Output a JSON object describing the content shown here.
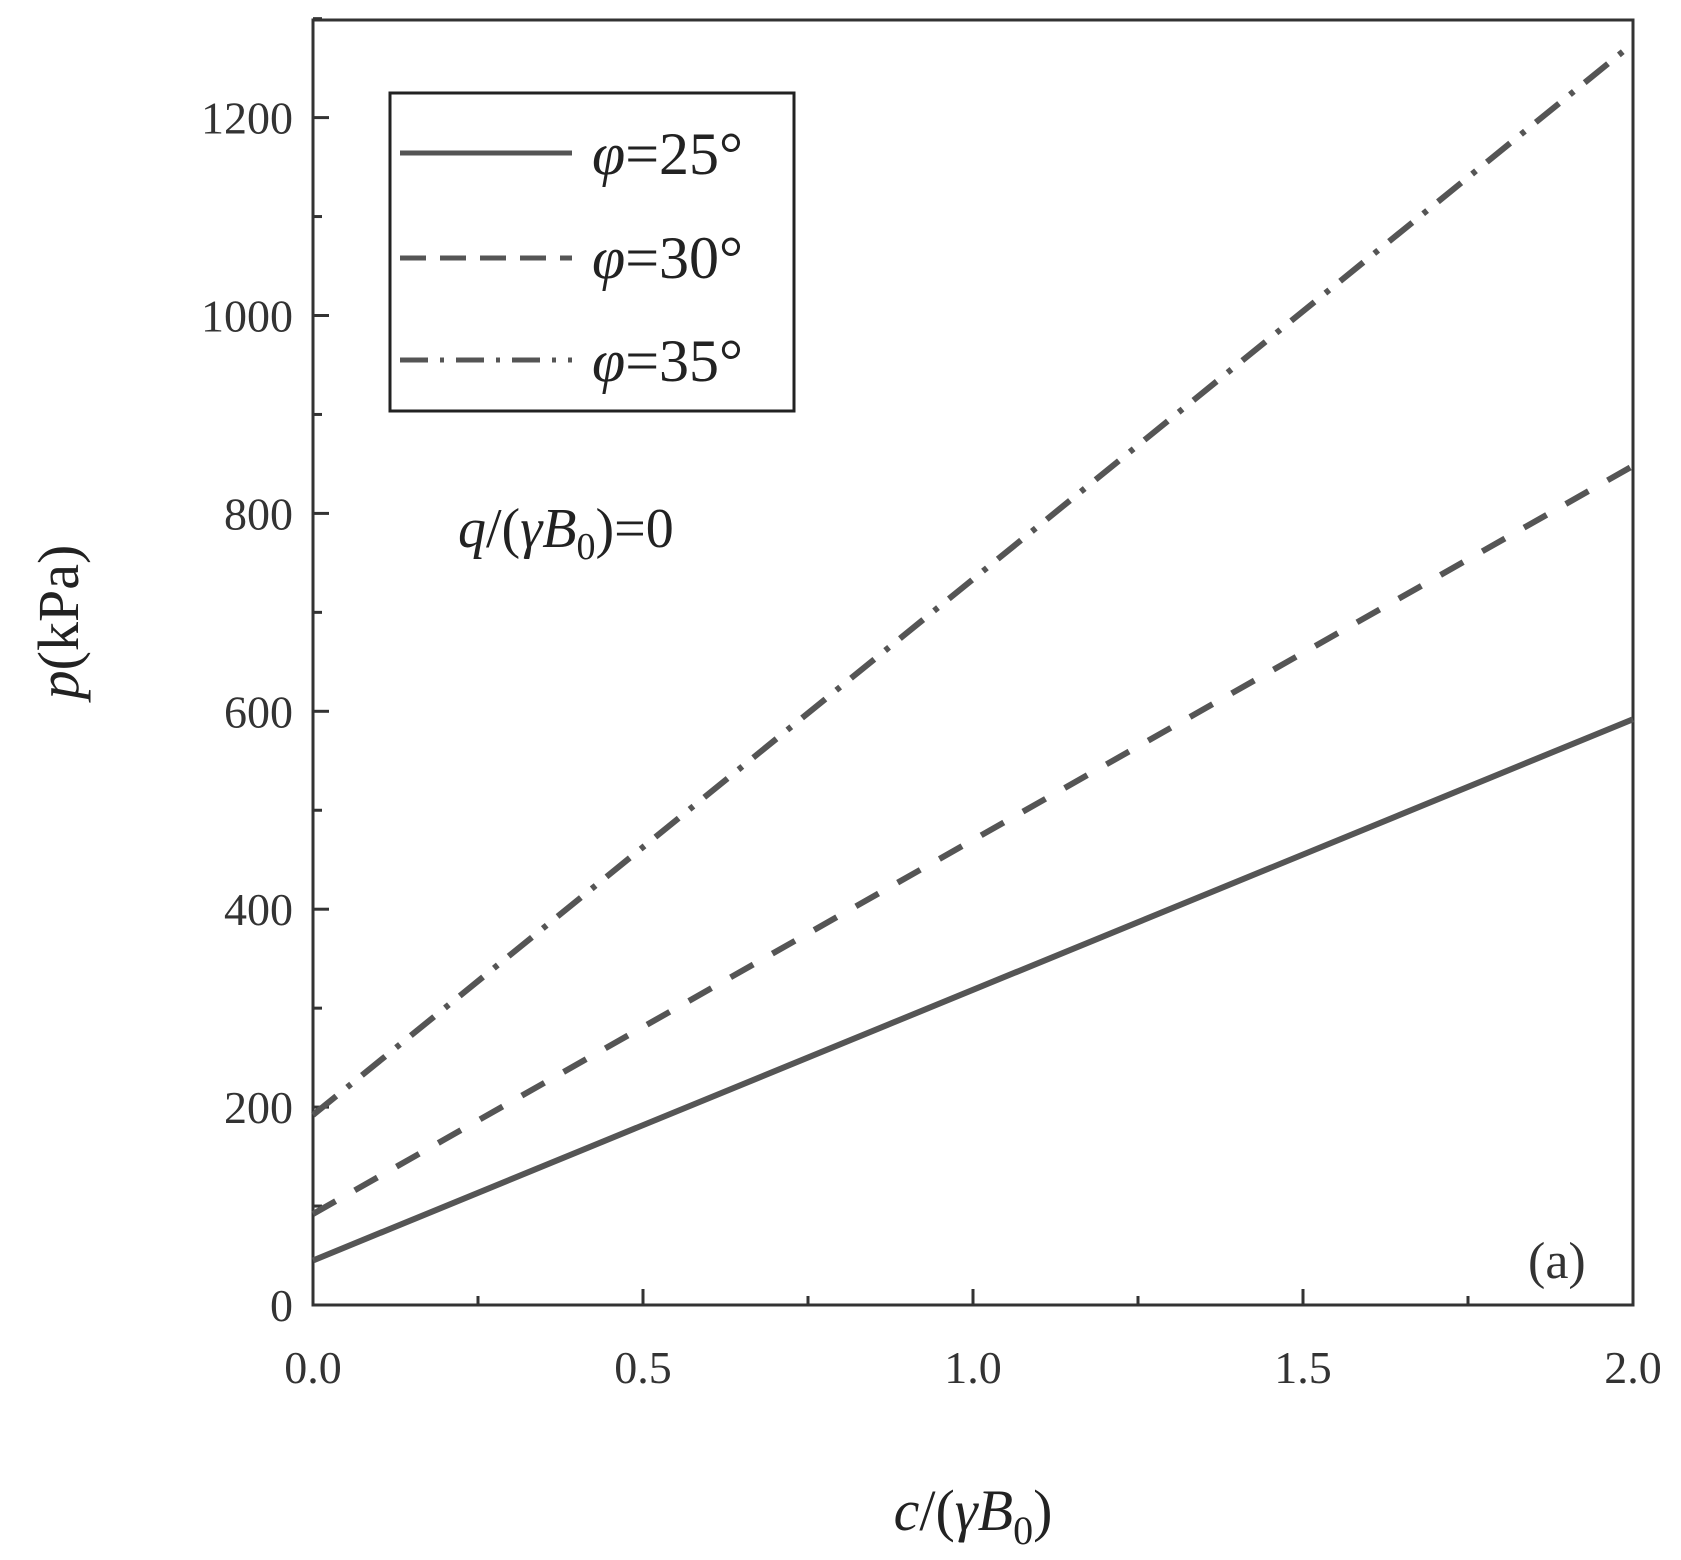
{
  "chart_data": {
    "type": "line",
    "x": [
      0.0,
      2.0
    ],
    "series": [
      {
        "name": "φ=25°",
        "values": [
          45,
          592
        ],
        "style": "solid",
        "color": "#555555"
      },
      {
        "name": "φ=30°",
        "values": [
          92,
          848
        ],
        "style": "dashed",
        "color": "#555555"
      },
      {
        "name": "φ=35°",
        "values": [
          192,
          1275
        ],
        "style": "dashdot",
        "color": "#555555"
      }
    ],
    "xlim": [
      0.0,
      2.0
    ],
    "ylim": [
      0,
      1300
    ],
    "xticks": [
      "0.0",
      "0.5",
      "1.0",
      "1.5",
      "2.0"
    ],
    "yticks": [
      "0",
      "200",
      "400",
      "600",
      "800",
      "1000",
      "1200"
    ],
    "xlabel": "c/(γB0)",
    "ylabel": "p(kPa)",
    "annotation": "q/(γB0)=0",
    "panel_label": "(a)",
    "legend_position": "top-left",
    "grid": false,
    "legend": {
      "entries": [
        {
          "symbol": "φ",
          "text": "=25°"
        },
        {
          "symbol": "φ",
          "text": "=30°"
        },
        {
          "symbol": "φ",
          "text": "=35°"
        }
      ]
    },
    "xlabel_parts": {
      "pre": "c",
      "mid": "/(",
      "gamma": "γ",
      "b": "B",
      "sub": "0",
      "post": ")"
    },
    "ylabel_parts": {
      "var": "p",
      "unit": "(kPa)"
    },
    "annotation_parts": {
      "q": "q",
      "mid": "/(",
      "gamma": "γ",
      "b": "B",
      "sub": "0",
      "post": ")=0"
    }
  }
}
